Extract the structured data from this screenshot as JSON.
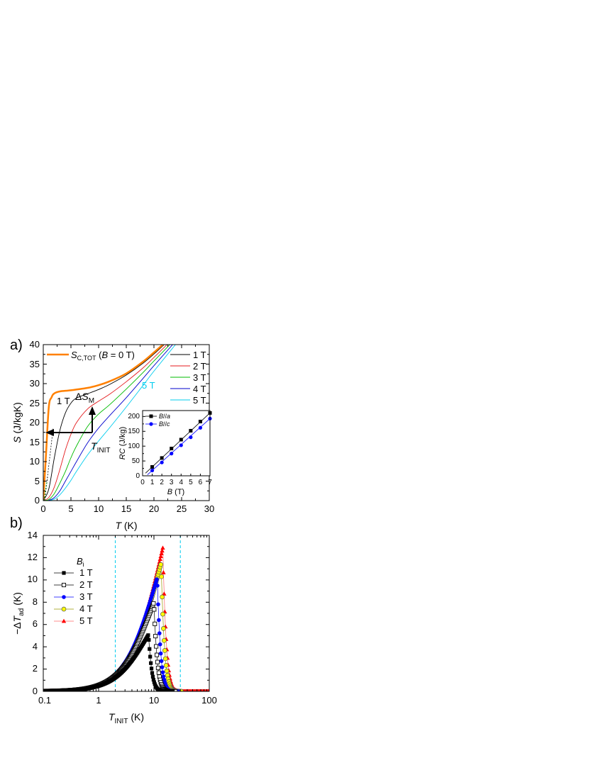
{
  "panel_a": {
    "label": "a)",
    "xlabel_italic": "T",
    "xlabel_rest": " (K)",
    "ylabel_italic": "S",
    "ylabel_rest": " (J/kgK)",
    "xticks": [
      "0",
      "5",
      "10",
      "15",
      "20",
      "25",
      "30"
    ],
    "yticks": [
      "0",
      "5",
      "10",
      "15",
      "20",
      "25",
      "30",
      "35",
      "40"
    ],
    "legend_left": {
      "italic": "S",
      "sub": "C,TOT",
      "rest": " (",
      "b_italic": "B",
      "rest2": " = 0 T)"
    },
    "legend_right": [
      "1 T",
      "2 T",
      "3 T",
      "4 T",
      "5 T"
    ],
    "annot_dsm": {
      "prefix": "Δ",
      "italic": "S",
      "sub": "M"
    },
    "annot_tinit": {
      "italic": "T",
      "sub": "INIT"
    },
    "annot_1t": "1 T",
    "annot_5t": "5 T",
    "inset": {
      "ylabel_italic": "RC",
      "ylabel_rest": " (J/kg)",
      "xlabel_italic": "B",
      "xlabel_rest": " (T)",
      "xticks": [
        "0",
        "1",
        "2",
        "3",
        "4",
        "5",
        "6",
        "7"
      ],
      "yticks": [
        "0",
        "50",
        "100",
        "150",
        "200"
      ],
      "legend": [
        {
          "pre": "B",
          "mid": "//",
          "post": "a"
        },
        {
          "pre": "B",
          "mid": "//",
          "post": "c"
        }
      ]
    }
  },
  "panel_b": {
    "label": "b)",
    "xlabel_italic": "T",
    "xlabel_sub": "INIT",
    "xlabel_rest": " (K)",
    "ylabel_prefix": "−Δ",
    "ylabel_italic": "T",
    "ylabel_sub": "ad",
    "ylabel_rest": " (K)",
    "xticks": [
      "0.1",
      "1",
      "10",
      "100"
    ],
    "yticks": [
      "0",
      "2",
      "4",
      "6",
      "8",
      "10",
      "12",
      "14"
    ],
    "legend_title_italic": "B",
    "legend_title_sub": "i",
    "legend": [
      "1 T",
      "2 T",
      "3 T",
      "4 T",
      "5 T"
    ]
  },
  "chart_data": [
    {
      "type": "line",
      "panel": "a",
      "xlim": [
        0,
        30
      ],
      "ylim": [
        0,
        40
      ],
      "colors": [
        "#ff8000",
        "#000000",
        "#e41a1c",
        "#00bb00",
        "#0000cc",
        "#00ccee"
      ],
      "series": [
        {
          "name": "S_C,TOT (B = 0 T)",
          "x": [
            0,
            0.5,
            1,
            1.5,
            2,
            3,
            5,
            8,
            10,
            12,
            15,
            18,
            20,
            22
          ],
          "y": [
            0,
            12,
            24,
            26.5,
            27.5,
            28.0,
            28.3,
            28.9,
            29.6,
            30.6,
            32.6,
            35.6,
            38.0,
            40.5
          ]
        },
        {
          "name": "1 T",
          "x": [
            0,
            1,
            2,
            3,
            4,
            5,
            6,
            8,
            10,
            12,
            15,
            18,
            20,
            22
          ],
          "y": [
            0,
            3,
            11,
            18,
            22.5,
            25,
            26.3,
            27.4,
            28.5,
            29.8,
            32.2,
            35.2,
            37.6,
            40.2
          ]
        },
        {
          "name": "2 T",
          "x": [
            0,
            1,
            2,
            3,
            4,
            5,
            6,
            8,
            10,
            12,
            15,
            18,
            20,
            22.5
          ],
          "y": [
            0,
            0.8,
            3.5,
            8,
            13,
            17,
            20,
            23.5,
            25.5,
            27.3,
            30.5,
            34,
            36.7,
            40.2
          ]
        },
        {
          "name": "3 T",
          "x": [
            0,
            1,
            2,
            3,
            4,
            5,
            6,
            8,
            10,
            12,
            15,
            18,
            20,
            23
          ],
          "y": [
            0,
            0.3,
            1.8,
            4.5,
            7.5,
            11,
            14,
            19,
            22.2,
            24.6,
            28.6,
            32.8,
            35.8,
            40.2
          ]
        },
        {
          "name": "4 T",
          "x": [
            0,
            1,
            2,
            3,
            4,
            5,
            6,
            8,
            10,
            12,
            15,
            18,
            20,
            23.5
          ],
          "y": [
            0,
            0.1,
            0.8,
            2.5,
            5,
            7.5,
            10,
            14.8,
            18.6,
            21.8,
            26.4,
            31.3,
            34.6,
            40.2
          ]
        },
        {
          "name": "5 T",
          "x": [
            0,
            1,
            2,
            3,
            4,
            5,
            6,
            8,
            10,
            12,
            15,
            18,
            20,
            24
          ],
          "y": [
            0,
            0.05,
            0.4,
            1.5,
            3.2,
            5.2,
            7.5,
            11.7,
            15.3,
            18.7,
            24,
            29.5,
            33.2,
            40.2
          ]
        }
      ]
    },
    {
      "type": "line",
      "panel": "a-inset",
      "xlim": [
        0,
        7
      ],
      "ylim": [
        0,
        220
      ],
      "colors": [
        "#000000",
        "#0000ff"
      ],
      "series": [
        {
          "name": "B//a",
          "x": [
            1,
            2,
            3,
            4,
            5,
            6,
            7
          ],
          "y": [
            30,
            60,
            92,
            122,
            152,
            183,
            212
          ]
        },
        {
          "name": "B//c",
          "x": [
            1,
            2,
            3,
            4,
            5,
            6,
            7
          ],
          "y": [
            18,
            45,
            75,
            103,
            130,
            162,
            193
          ]
        }
      ]
    },
    {
      "type": "scatter",
      "panel": "b",
      "xscale": "log",
      "xlim": [
        0.1,
        100
      ],
      "ylim": [
        0,
        14
      ],
      "vlines": [
        2,
        30
      ],
      "colors": [
        "#000000",
        "#000000",
        "#0000ff",
        "#cccc00",
        "#ff0000"
      ],
      "series": [
        {
          "name": "1 T",
          "peak_x": 8,
          "peak_y": 5.1,
          "cut_x": 22
        },
        {
          "name": "2 T",
          "peak_x": 10,
          "peak_y": 8.0,
          "cut_x": 25
        },
        {
          "name": "3 T",
          "peak_x": 11.5,
          "peak_y": 10.2,
          "cut_x": 28
        },
        {
          "name": "4 T",
          "peak_x": 13.5,
          "peak_y": 11.5,
          "cut_x": 32
        },
        {
          "name": "5 T",
          "peak_x": 14.5,
          "peak_y": 12.9,
          "cut_x": 100
        }
      ]
    }
  ]
}
